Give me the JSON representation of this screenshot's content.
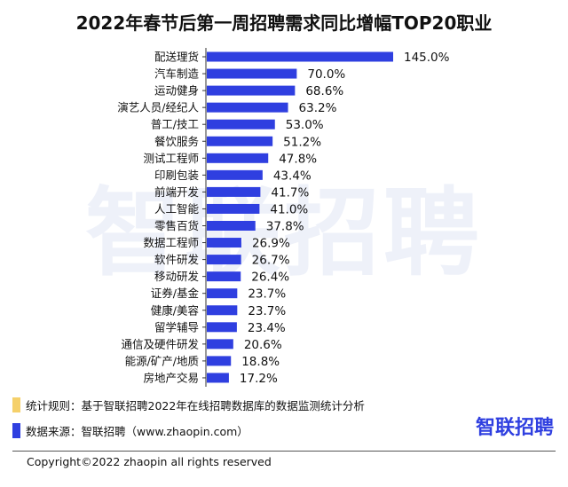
{
  "title": "2022年春节后第一周招聘需求同比增幅TOP20职业",
  "watermark": "智联招聘",
  "chart_data": {
    "type": "bar",
    "orientation": "horizontal",
    "title": "2022年春节后第一周招聘需求同比增幅TOP20职业",
    "categories": [
      "配送理货",
      "汽车制造",
      "运动健身",
      "演艺人员/经纪人",
      "普工/技工",
      "餐饮服务",
      "测试工程师",
      "印刷包装",
      "前端开发",
      "人工智能",
      "零售百货",
      "数据工程师",
      "软件研发",
      "移动研发",
      "证券/基金",
      "健康/美容",
      "留学辅导",
      "通信及硬件研发",
      "能源/矿产/地质",
      "房地产交易"
    ],
    "values": [
      145.0,
      70.0,
      68.6,
      63.2,
      53.0,
      51.2,
      47.8,
      43.4,
      41.7,
      41.0,
      37.8,
      26.9,
      26.7,
      26.4,
      23.7,
      23.7,
      23.4,
      20.6,
      18.8,
      17.2
    ],
    "value_labels": [
      "145.0%",
      "70.0%",
      "68.6%",
      "63.2%",
      "53.0%",
      "51.2%",
      "47.8%",
      "43.4%",
      "41.7%",
      "41.0%",
      "37.8%",
      "26.9%",
      "26.7%",
      "26.4%",
      "23.7%",
      "23.7%",
      "23.4%",
      "20.6%",
      "18.8%",
      "17.2%"
    ],
    "unit": "%",
    "xlim": [
      0,
      145
    ],
    "bar_color": "#2f3fe0"
  },
  "legend": {
    "rule": {
      "text": "统计规则：基于智联招聘2022年在线招聘数据库的数据监测统计分析",
      "color": "#f5d06a"
    },
    "source": {
      "text": "数据来源：智联招聘（www.zhaopin.com）",
      "color": "#2f3fe0"
    }
  },
  "brand": "智联招聘",
  "copyright": "Copyright©2022 zhaopin all rights reserved"
}
